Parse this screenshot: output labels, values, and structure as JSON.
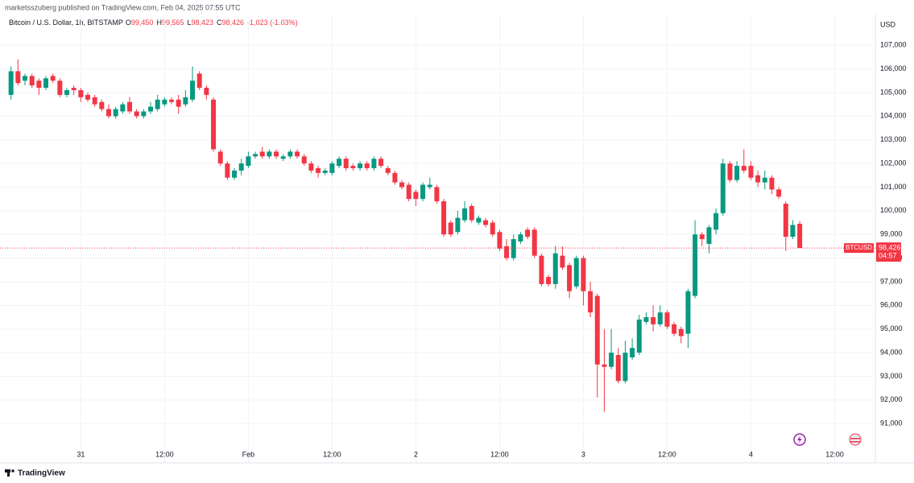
{
  "chart_data": {
    "type": "candlestick",
    "publisher": "marketsszuberg published on TradingView.com, Feb 04, 2025 07:55 UTC",
    "title": "Bitcoin / U.S. Dollar, 1h, BITSTAMP",
    "ohlc_legend": [
      {
        "key": "O",
        "text": "99,450"
      },
      {
        "key": "H",
        "text": "99,565"
      },
      {
        "key": "L",
        "text": "98,423"
      },
      {
        "key": "C",
        "text": "98,426"
      }
    ],
    "change": "-1,023 (-1.03%)",
    "currency": "USD",
    "brand": "TradingView",
    "up_color": "#089981",
    "down_color": "#f23645",
    "grid": true,
    "open": [
      104900,
      105900,
      105500,
      105700,
      105500,
      105200,
      105700,
      105500,
      104900,
      105200,
      105100,
      104900,
      104800,
      104600,
      104300,
      104000,
      104200,
      104600,
      104200,
      104000,
      104200,
      104300,
      104500,
      104700,
      104700,
      104500,
      104700,
      105800,
      105200,
      104700,
      102500,
      102000,
      101400,
      101700,
      101900,
      102300,
      102500,
      102300,
      102500,
      102200,
      102300,
      102500,
      102300,
      102000,
      101800,
      101600,
      101600,
      101900,
      102200,
      101900,
      101800,
      102000,
      101800,
      102200,
      101800,
      101600,
      101200,
      101100,
      100800,
      100500,
      101000,
      101000,
      100400,
      99500,
      99100,
      99600,
      100200,
      99500,
      99600,
      99500,
      99100,
      98500,
      98000,
      98700,
      99200,
      99200,
      98100,
      97200,
      96900,
      98100,
      97700,
      96800,
      98000,
      96600,
      96400,
      93500,
      93400,
      93900,
      92800,
      93800,
      94000,
      95300,
      95500,
      95200,
      95700,
      95200,
      95000,
      94800,
      96400,
      99000,
      98600,
      99200,
      99900,
      102000,
      101300,
      101900,
      101900,
      101500,
      101200,
      101400,
      100900,
      100300,
      98900,
      99450
    ],
    "high": [
      106100,
      106400,
      105800,
      105800,
      105600,
      105700,
      105800,
      105600,
      105200,
      105300,
      105200,
      105000,
      104900,
      104700,
      104500,
      104400,
      104600,
      104800,
      104300,
      104300,
      104600,
      104900,
      104800,
      104800,
      104900,
      105100,
      106100,
      105900,
      105300,
      104800,
      102600,
      102100,
      101800,
      102200,
      102500,
      102500,
      102700,
      102600,
      102600,
      102400,
      102600,
      102600,
      102400,
      102100,
      101900,
      101800,
      102100,
      102300,
      102300,
      102000,
      102100,
      102100,
      102300,
      102300,
      101900,
      101700,
      101300,
      101200,
      100900,
      101200,
      101400,
      101100,
      100500,
      99600,
      100000,
      100400,
      100300,
      99800,
      99700,
      99600,
      99200,
      98800,
      99000,
      99100,
      99300,
      99300,
      98200,
      97300,
      98500,
      98500,
      97800,
      98100,
      98100,
      97000,
      96500,
      95000,
      95000,
      94200,
      94500,
      94600,
      95600,
      95700,
      96000,
      96000,
      95800,
      95300,
      95100,
      96700,
      99600,
      99100,
      99400,
      100100,
      102200,
      102100,
      102100,
      102600,
      102100,
      101700,
      101700,
      101500,
      101000,
      100400,
      99600,
      99565
    ],
    "low": [
      104700,
      105300,
      105300,
      105200,
      104900,
      105100,
      105400,
      104800,
      104800,
      104900,
      104600,
      104600,
      104400,
      104200,
      103900,
      103900,
      104100,
      104100,
      103900,
      103900,
      104100,
      104200,
      104400,
      104500,
      104100,
      104400,
      104600,
      105100,
      104700,
      102500,
      101900,
      101300,
      101300,
      101500,
      101800,
      102200,
      102200,
      102200,
      102200,
      102100,
      102200,
      102200,
      101900,
      101600,
      101400,
      101500,
      101500,
      101800,
      101700,
      101700,
      101700,
      101700,
      101700,
      101800,
      101500,
      101100,
      100900,
      100400,
      100200,
      100400,
      100900,
      100300,
      98900,
      98900,
      99000,
      99500,
      99500,
      99400,
      99300,
      98900,
      98300,
      97900,
      97900,
      98600,
      98800,
      98000,
      96800,
      96800,
      96700,
      97500,
      96300,
      96700,
      96000,
      95500,
      92100,
      91500,
      93300,
      92700,
      92700,
      93700,
      93900,
      95200,
      94900,
      95100,
      95000,
      94700,
      94400,
      94200,
      96300,
      98500,
      98200,
      99000,
      99800,
      101200,
      101200,
      101600,
      101300,
      101000,
      100900,
      100700,
      100500,
      98300,
      98800,
      98423
    ],
    "close": [
      105900,
      105400,
      105700,
      105300,
      105200,
      105600,
      105500,
      104900,
      105100,
      105100,
      104800,
      104700,
      104500,
      104300,
      104000,
      104300,
      104500,
      104200,
      104000,
      104200,
      104400,
      104700,
      104700,
      104600,
      104400,
      104800,
      105500,
      105200,
      104900,
      102600,
      102000,
      101400,
      101700,
      102000,
      102300,
      102400,
      102300,
      102500,
      102300,
      102300,
      102500,
      102300,
      102000,
      101700,
      101600,
      101700,
      102000,
      102200,
      101800,
      101800,
      102000,
      101800,
      102200,
      101900,
      101600,
      101200,
      101000,
      100500,
      100500,
      101100,
      101100,
      100400,
      99000,
      99000,
      99700,
      100100,
      99600,
      99700,
      99400,
      99000,
      98400,
      98000,
      98800,
      99000,
      98900,
      98100,
      96900,
      96900,
      98200,
      97600,
      96600,
      98000,
      96600,
      95700,
      93500,
      93400,
      94000,
      92800,
      94000,
      94200,
      95400,
      95500,
      95200,
      95700,
      95100,
      94800,
      94700,
      96600,
      99000,
      98800,
      99300,
      99900,
      102000,
      101300,
      101900,
      101700,
      101400,
      101200,
      101400,
      100900,
      100600,
      98900,
      99400,
      98426
    ],
    "xlim": [
      -1,
      123.6
    ],
    "xticks": [
      {
        "value": 10,
        "label": "31"
      },
      {
        "value": 22,
        "label": "12:00"
      },
      {
        "value": 34,
        "label": "Feb"
      },
      {
        "value": 46,
        "label": "12:00"
      },
      {
        "value": 58,
        "label": "2"
      },
      {
        "value": 70,
        "label": "12:00"
      },
      {
        "value": 82,
        "label": "3"
      },
      {
        "value": 94,
        "label": "12:00"
      },
      {
        "value": 106,
        "label": "4"
      },
      {
        "value": 118,
        "label": "12:00"
      }
    ],
    "ylim": [
      89850,
      108300
    ],
    "yticks": [
      {
        "value": 91000,
        "label": "91,000"
      },
      {
        "value": 92000,
        "label": "92,000"
      },
      {
        "value": 93000,
        "label": "93,000"
      },
      {
        "value": 94000,
        "label": "94,000"
      },
      {
        "value": 95000,
        "label": "95,000"
      },
      {
        "value": 96000,
        "label": "96,000"
      },
      {
        "value": 97000,
        "label": "97,000"
      },
      {
        "value": 98000,
        "label": "98,000"
      },
      {
        "value": 99000,
        "label": "99,000"
      },
      {
        "value": 100000,
        "label": "100,000"
      },
      {
        "value": 101000,
        "label": "101,000"
      },
      {
        "value": 102000,
        "label": "102,000"
      },
      {
        "value": 103000,
        "label": "103,000"
      },
      {
        "value": 104000,
        "label": "104,000"
      },
      {
        "value": 105000,
        "label": "105,000"
      },
      {
        "value": 106000,
        "label": "106,000"
      },
      {
        "value": 107000,
        "label": "107,000"
      }
    ],
    "price_label": {
      "symbol": "BTCUSD",
      "value": 98426,
      "label": "98,426",
      "countdown": "04:57"
    }
  }
}
